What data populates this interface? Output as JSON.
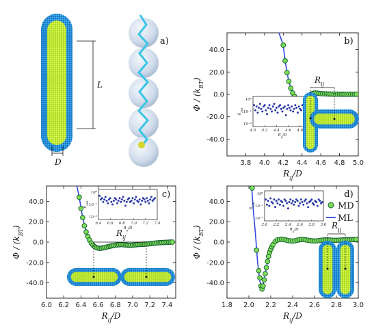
{
  "schematic": {
    "rod_length_label": "L",
    "rod_diameter_label": "D"
  },
  "colors": {
    "md_marker": "#7ed957",
    "md_edge": "#0f5f2f",
    "ml_line": "#3347e0",
    "inset_marker": "#2b3aa8",
    "rod_core": "#c8f03a",
    "rod_shell": "#1e8fd8"
  },
  "chart_data": [
    {
      "panel": "a)",
      "type": "other",
      "title": "",
      "labels": [
        "L",
        "D"
      ]
    },
    {
      "panel": "b)",
      "type": "line",
      "xlabel": "R_ij/D",
      "ylabel": "Φ / (k_BT)",
      "xlim": [
        3.6,
        5.0
      ],
      "ylim": [
        -55,
        55
      ],
      "xticks": [
        "3.8",
        "4.0",
        "4.2",
        "4.4",
        "4.6",
        "4.8",
        "5.0"
      ],
      "yticks": [
        "40.0",
        "20.0",
        "0.0",
        "-20.0",
        "-40.0"
      ],
      "annotation": "R_ij",
      "series": [
        {
          "name": "MD",
          "x": [
            4.2,
            4.22,
            4.24,
            4.26,
            4.28,
            4.3,
            4.32,
            4.34,
            4.36,
            4.38,
            4.4,
            4.42,
            4.44,
            4.46,
            4.48,
            4.5,
            4.52,
            4.54,
            4.56,
            4.58,
            4.6,
            4.62,
            4.64,
            4.66,
            4.68,
            4.7,
            4.72,
            4.74,
            4.76,
            4.78,
            4.8,
            4.82,
            4.84,
            4.86,
            4.88,
            4.9,
            4.92,
            4.94,
            4.96,
            4.98
          ],
          "y": [
            44,
            30,
            19.5,
            11.5,
            5.5,
            1.2,
            -1.8,
            -3.8,
            -4.8,
            -5.2,
            -5.0,
            -4.2,
            -3.0,
            -1.6,
            -0.5,
            0.4,
            1.0,
            1.2,
            1.1,
            0.9,
            0.7,
            0.6,
            0.5,
            0.4,
            0.3,
            0.3,
            0.2,
            0.2,
            0.2,
            0.2,
            0.1,
            0.1,
            0.1,
            0.1,
            0.1,
            0.1,
            0.1,
            0.1,
            0.1,
            0.1
          ]
        },
        {
          "name": "ML",
          "x": [
            4.12,
            4.15,
            4.18,
            4.2,
            4.22,
            4.24,
            4.26,
            4.28,
            4.3,
            4.32,
            4.34,
            4.36,
            4.38,
            4.4,
            4.42,
            4.44,
            4.46,
            4.48,
            4.5,
            4.52,
            4.54,
            4.56,
            4.6,
            4.65,
            4.7,
            4.8,
            4.9,
            5.0
          ],
          "y": [
            62,
            56,
            49,
            43.5,
            30,
            19.5,
            11.5,
            5.5,
            1.2,
            -1.8,
            -3.8,
            -4.8,
            -5.2,
            -5.0,
            -4.2,
            -3.0,
            -1.6,
            -0.5,
            0.4,
            1.0,
            1.2,
            1.1,
            0.7,
            0.4,
            0.3,
            0.2,
            0.1,
            0.1
          ]
        }
      ],
      "inset": {
        "xlabel": "R_ij/D",
        "ylabel": "δ_MB",
        "xlim": [
          4.0,
          5.0
        ],
        "xticks": [
          "4.0",
          "4.2",
          "4.4",
          "4.6",
          "4.8",
          "5.0"
        ],
        "yticks": [
          "10⁰",
          "10⁻¹",
          "10⁻²"
        ],
        "x": [
          4.02,
          4.04,
          4.06,
          4.08,
          4.1,
          4.12,
          4.14,
          4.16,
          4.18,
          4.2,
          4.22,
          4.24,
          4.26,
          4.28,
          4.3,
          4.32,
          4.34,
          4.36,
          4.38,
          4.4,
          4.42,
          4.44,
          4.46,
          4.48,
          4.5,
          4.52,
          4.54,
          4.56,
          4.58,
          4.6,
          4.62,
          4.64,
          4.66,
          4.68,
          4.7,
          4.72,
          4.74,
          4.76,
          4.78,
          4.8,
          4.82,
          4.84,
          4.86,
          4.88,
          4.9,
          4.92,
          4.94,
          4.96,
          4.98
        ],
        "logy": [
          -0.5,
          -0.9,
          -0.6,
          -1.1,
          -0.7,
          -0.4,
          -0.8,
          -1.0,
          -0.6,
          -0.5,
          -0.9,
          -1.2,
          -0.7,
          -0.5,
          -0.8,
          -1.0,
          -0.6,
          -0.4,
          -0.9,
          -0.7,
          -1.1,
          -0.6,
          -0.5,
          -0.8,
          -1.0,
          -0.7,
          -0.6,
          -1.3,
          -0.8,
          -0.5,
          -0.7,
          -0.9,
          -0.6,
          -1.0,
          -0.8,
          -0.5,
          -0.7,
          -1.1,
          -0.6,
          -0.8,
          -0.9,
          -0.5,
          -0.7,
          -1.0,
          -0.6,
          -0.8,
          -0.5,
          -0.9,
          -0.7
        ]
      }
    },
    {
      "panel": "c)",
      "type": "line",
      "xlabel": "R_ij/D",
      "ylabel": "Φ / (k_BT)",
      "xlim": [
        6.0,
        7.5
      ],
      "ylim": [
        -55,
        55
      ],
      "xticks": [
        "6.0",
        "6.2",
        "6.4",
        "6.6",
        "6.8",
        "7.0",
        "7.2",
        "7.4"
      ],
      "yticks": [
        "40.0",
        "20.0",
        "0.0",
        "-20.0",
        "-40.0"
      ],
      "annotation": "R_ij",
      "series": [
        {
          "name": "MD",
          "x": [
            6.38,
            6.4,
            6.42,
            6.44,
            6.46,
            6.48,
            6.5,
            6.52,
            6.54,
            6.56,
            6.58,
            6.6,
            6.62,
            6.64,
            6.66,
            6.68,
            6.7,
            6.72,
            6.74,
            6.76,
            6.78,
            6.8,
            6.82,
            6.84,
            6.86,
            6.88,
            6.9,
            6.92,
            6.94,
            6.96,
            6.98,
            7.0,
            7.02,
            7.04,
            7.06,
            7.08,
            7.1,
            7.12,
            7.14,
            7.16,
            7.18,
            7.2,
            7.22,
            7.24,
            7.26,
            7.28,
            7.3,
            7.32,
            7.34,
            7.36,
            7.38,
            7.4,
            7.42,
            7.44,
            7.46
          ],
          "y": [
            44,
            33,
            24,
            16,
            10,
            5.5,
            2,
            -1,
            -3,
            -4.5,
            -5.5,
            -6,
            -6.2,
            -6,
            -5.6,
            -5.2,
            -4.8,
            -4.4,
            -4,
            -3.6,
            -3.3,
            -3,
            -2.8,
            -2.6,
            -2.5,
            -2.5,
            -2.6,
            -2.8,
            -3,
            -3.1,
            -3.1,
            -3,
            -2.8,
            -2.6,
            -2.4,
            -2.3,
            -2.2,
            -2.1,
            -2,
            -1.9,
            -1.8,
            -1.6,
            -1.4,
            -1.2,
            -1,
            -0.8,
            -0.7,
            -0.6,
            -0.5,
            -0.4,
            -0.3,
            -0.2,
            -0.1,
            0,
            0
          ]
        },
        {
          "name": "ML",
          "x": [
            6.35,
            6.38,
            6.42,
            6.46,
            6.5,
            6.54,
            6.58,
            6.62,
            6.66,
            6.7,
            6.76,
            6.82,
            6.88,
            6.94,
            7.0,
            7.06,
            7.12,
            7.18,
            7.24,
            7.3,
            7.36,
            7.42,
            7.48
          ],
          "y": [
            56,
            44,
            24,
            10,
            2,
            -3,
            -5.5,
            -6.2,
            -5.6,
            -4.8,
            -3.6,
            -2.8,
            -2.5,
            -3,
            -3,
            -2.4,
            -2.1,
            -1.8,
            -1.2,
            -0.7,
            -0.4,
            -0.1,
            0
          ]
        }
      ],
      "inset": {
        "xlabel": "R_ij/D",
        "ylabel": "δ_MB",
        "xlim": [
          6.4,
          7.4
        ],
        "xticks": [
          "6.4",
          "6.6",
          "6.8",
          "7.0",
          "7.2",
          "7.4"
        ],
        "yticks": [
          "10⁰",
          "10⁻¹",
          "10⁻²"
        ],
        "x": [
          6.42,
          6.44,
          6.46,
          6.48,
          6.5,
          6.52,
          6.54,
          6.56,
          6.58,
          6.6,
          6.62,
          6.64,
          6.66,
          6.68,
          6.7,
          6.72,
          6.74,
          6.76,
          6.78,
          6.8,
          6.82,
          6.84,
          6.86,
          6.88,
          6.9,
          6.92,
          6.94,
          6.96,
          6.98,
          7.0,
          7.02,
          7.04,
          7.06,
          7.08,
          7.1,
          7.12,
          7.14,
          7.16,
          7.18,
          7.2,
          7.22,
          7.24,
          7.26,
          7.28,
          7.3,
          7.32,
          7.34,
          7.36
        ],
        "logy": [
          -0.3,
          -0.6,
          -0.5,
          -0.8,
          -0.6,
          -0.4,
          -0.7,
          -0.9,
          -0.6,
          -0.5,
          -0.8,
          -1.0,
          -0.7,
          -0.5,
          -0.6,
          -0.9,
          -0.7,
          -0.5,
          -0.8,
          -0.6,
          -0.4,
          -0.7,
          -1.1,
          -0.8,
          -0.6,
          -0.5,
          -0.8,
          -0.7,
          -0.5,
          -0.9,
          -0.6,
          -0.4,
          -0.7,
          -0.8,
          -0.6,
          -1.0,
          -0.7,
          -0.5,
          -0.6,
          -0.8,
          -0.5,
          -0.7,
          -0.9,
          -0.6,
          -0.4,
          -0.7,
          -0.6,
          -0.5
        ]
      }
    },
    {
      "panel": "d)",
      "type": "line",
      "xlabel": "R_ij/D",
      "ylabel": "Φ / (k_BT)",
      "xlim": [
        1.8,
        3.0
      ],
      "ylim": [
        -55,
        55
      ],
      "xticks": [
        "1.8",
        "2.0",
        "2.2",
        "2.4",
        "2.6",
        "2.8",
        "3.0"
      ],
      "yticks": [
        "40.0",
        "20.0",
        "0.0",
        "-20.0",
        "-40.0"
      ],
      "annotation": "R_ij",
      "legend": {
        "placement": "top-right",
        "entries": [
          "MD",
          "ML"
        ]
      },
      "series": [
        {
          "name": "MD",
          "x": [
            2.03,
            2.07,
            2.09,
            2.1,
            2.11,
            2.12,
            2.13,
            2.14,
            2.15,
            2.16,
            2.17,
            2.18,
            2.19,
            2.2,
            2.21,
            2.22,
            2.24,
            2.26,
            2.28,
            2.3,
            2.32,
            2.34,
            2.36,
            2.38,
            2.4,
            2.42,
            2.44,
            2.46,
            2.48,
            2.5,
            2.52,
            2.54,
            2.56,
            2.58,
            2.6,
            2.62,
            2.64,
            2.66,
            2.68,
            2.7,
            2.72,
            2.74,
            2.76,
            2.78,
            2.8,
            2.82,
            2.84,
            2.86,
            2.88,
            2.9,
            2.92,
            2.94,
            2.96,
            2.98
          ],
          "y": [
            53,
            -8,
            -28,
            -35,
            -43,
            -46,
            -43,
            -37,
            -31,
            -25,
            -19,
            -14,
            -10,
            -7,
            -4.5,
            -2.5,
            0.5,
            2,
            2.5,
            2.8,
            2.5,
            2,
            1.5,
            1.2,
            1,
            1.2,
            1.8,
            2.3,
            2.6,
            2.5,
            2.2,
            1.8,
            1.5,
            1.2,
            1.1,
            1.2,
            1.5,
            1.8,
            2,
            2.1,
            2.1,
            2,
            1.9,
            1.8,
            1.8,
            1.9,
            2,
            2.1,
            2.2,
            2.3,
            2.3,
            2.4,
            2.5,
            2.6
          ]
        },
        {
          "name": "ML",
          "x": [
            2.0,
            2.02,
            2.04,
            2.06,
            2.08,
            2.1,
            2.12,
            2.14,
            2.16,
            2.18,
            2.2,
            2.22,
            2.24,
            2.28,
            2.32,
            2.36,
            2.4,
            2.44,
            2.48,
            2.52,
            2.56,
            2.6,
            2.64,
            2.68,
            2.72,
            2.76,
            2.8,
            2.84,
            2.88,
            2.92,
            2.96,
            3.0
          ],
          "y": [
            80,
            62,
            32,
            8,
            -20,
            -38,
            -46,
            -37,
            -25,
            -14,
            -7,
            -2.5,
            0.5,
            2.5,
            2.5,
            1.5,
            1,
            1.8,
            2.6,
            2.2,
            1.5,
            1.1,
            1.5,
            2,
            2.1,
            1.9,
            1.8,
            2,
            2.2,
            2.3,
            2.5,
            2.7
          ]
        }
      ],
      "inset": {
        "xlabel": "R_ij/D",
        "ylabel": "δ_MB",
        "xlim": [
          2.0,
          3.0
        ],
        "xticks": [
          "2.0",
          "2.2",
          "2.4",
          "2.6",
          "2.8",
          "3.0"
        ],
        "yticks": [
          "10⁰",
          "10⁻¹",
          "10⁻²"
        ],
        "x": [
          2.02,
          2.04,
          2.06,
          2.08,
          2.1,
          2.12,
          2.14,
          2.16,
          2.18,
          2.2,
          2.22,
          2.24,
          2.26,
          2.28,
          2.3,
          2.32,
          2.34,
          2.36,
          2.38,
          2.4,
          2.42,
          2.44,
          2.46,
          2.48,
          2.5,
          2.52,
          2.54,
          2.56,
          2.58,
          2.6,
          2.62,
          2.64,
          2.66,
          2.68,
          2.7,
          2.72,
          2.74,
          2.76,
          2.78,
          2.8,
          2.82,
          2.84,
          2.86,
          2.88,
          2.9,
          2.92,
          2.94,
          2.96,
          2.98
        ],
        "logy": [
          -0.5,
          -0.9,
          -0.6,
          -1.0,
          -0.4,
          -0.7,
          -0.8,
          -0.5,
          -1.1,
          -0.6,
          -0.8,
          -0.5,
          -0.9,
          -0.6,
          -0.7,
          -1.0,
          -0.5,
          -0.6,
          -0.8,
          -1.2,
          -0.7,
          -0.5,
          -0.8,
          -0.6,
          -0.9,
          -0.7,
          -0.5,
          -0.6,
          -1.0,
          -0.8,
          -0.5,
          -0.7,
          -0.9,
          -0.6,
          -0.5,
          -0.8,
          -1.1,
          -0.7,
          -0.6,
          -0.5,
          -0.8,
          -0.9,
          -0.6,
          -0.7,
          -1.0,
          -0.5,
          -0.6,
          -0.8,
          -0.7
        ]
      }
    }
  ]
}
